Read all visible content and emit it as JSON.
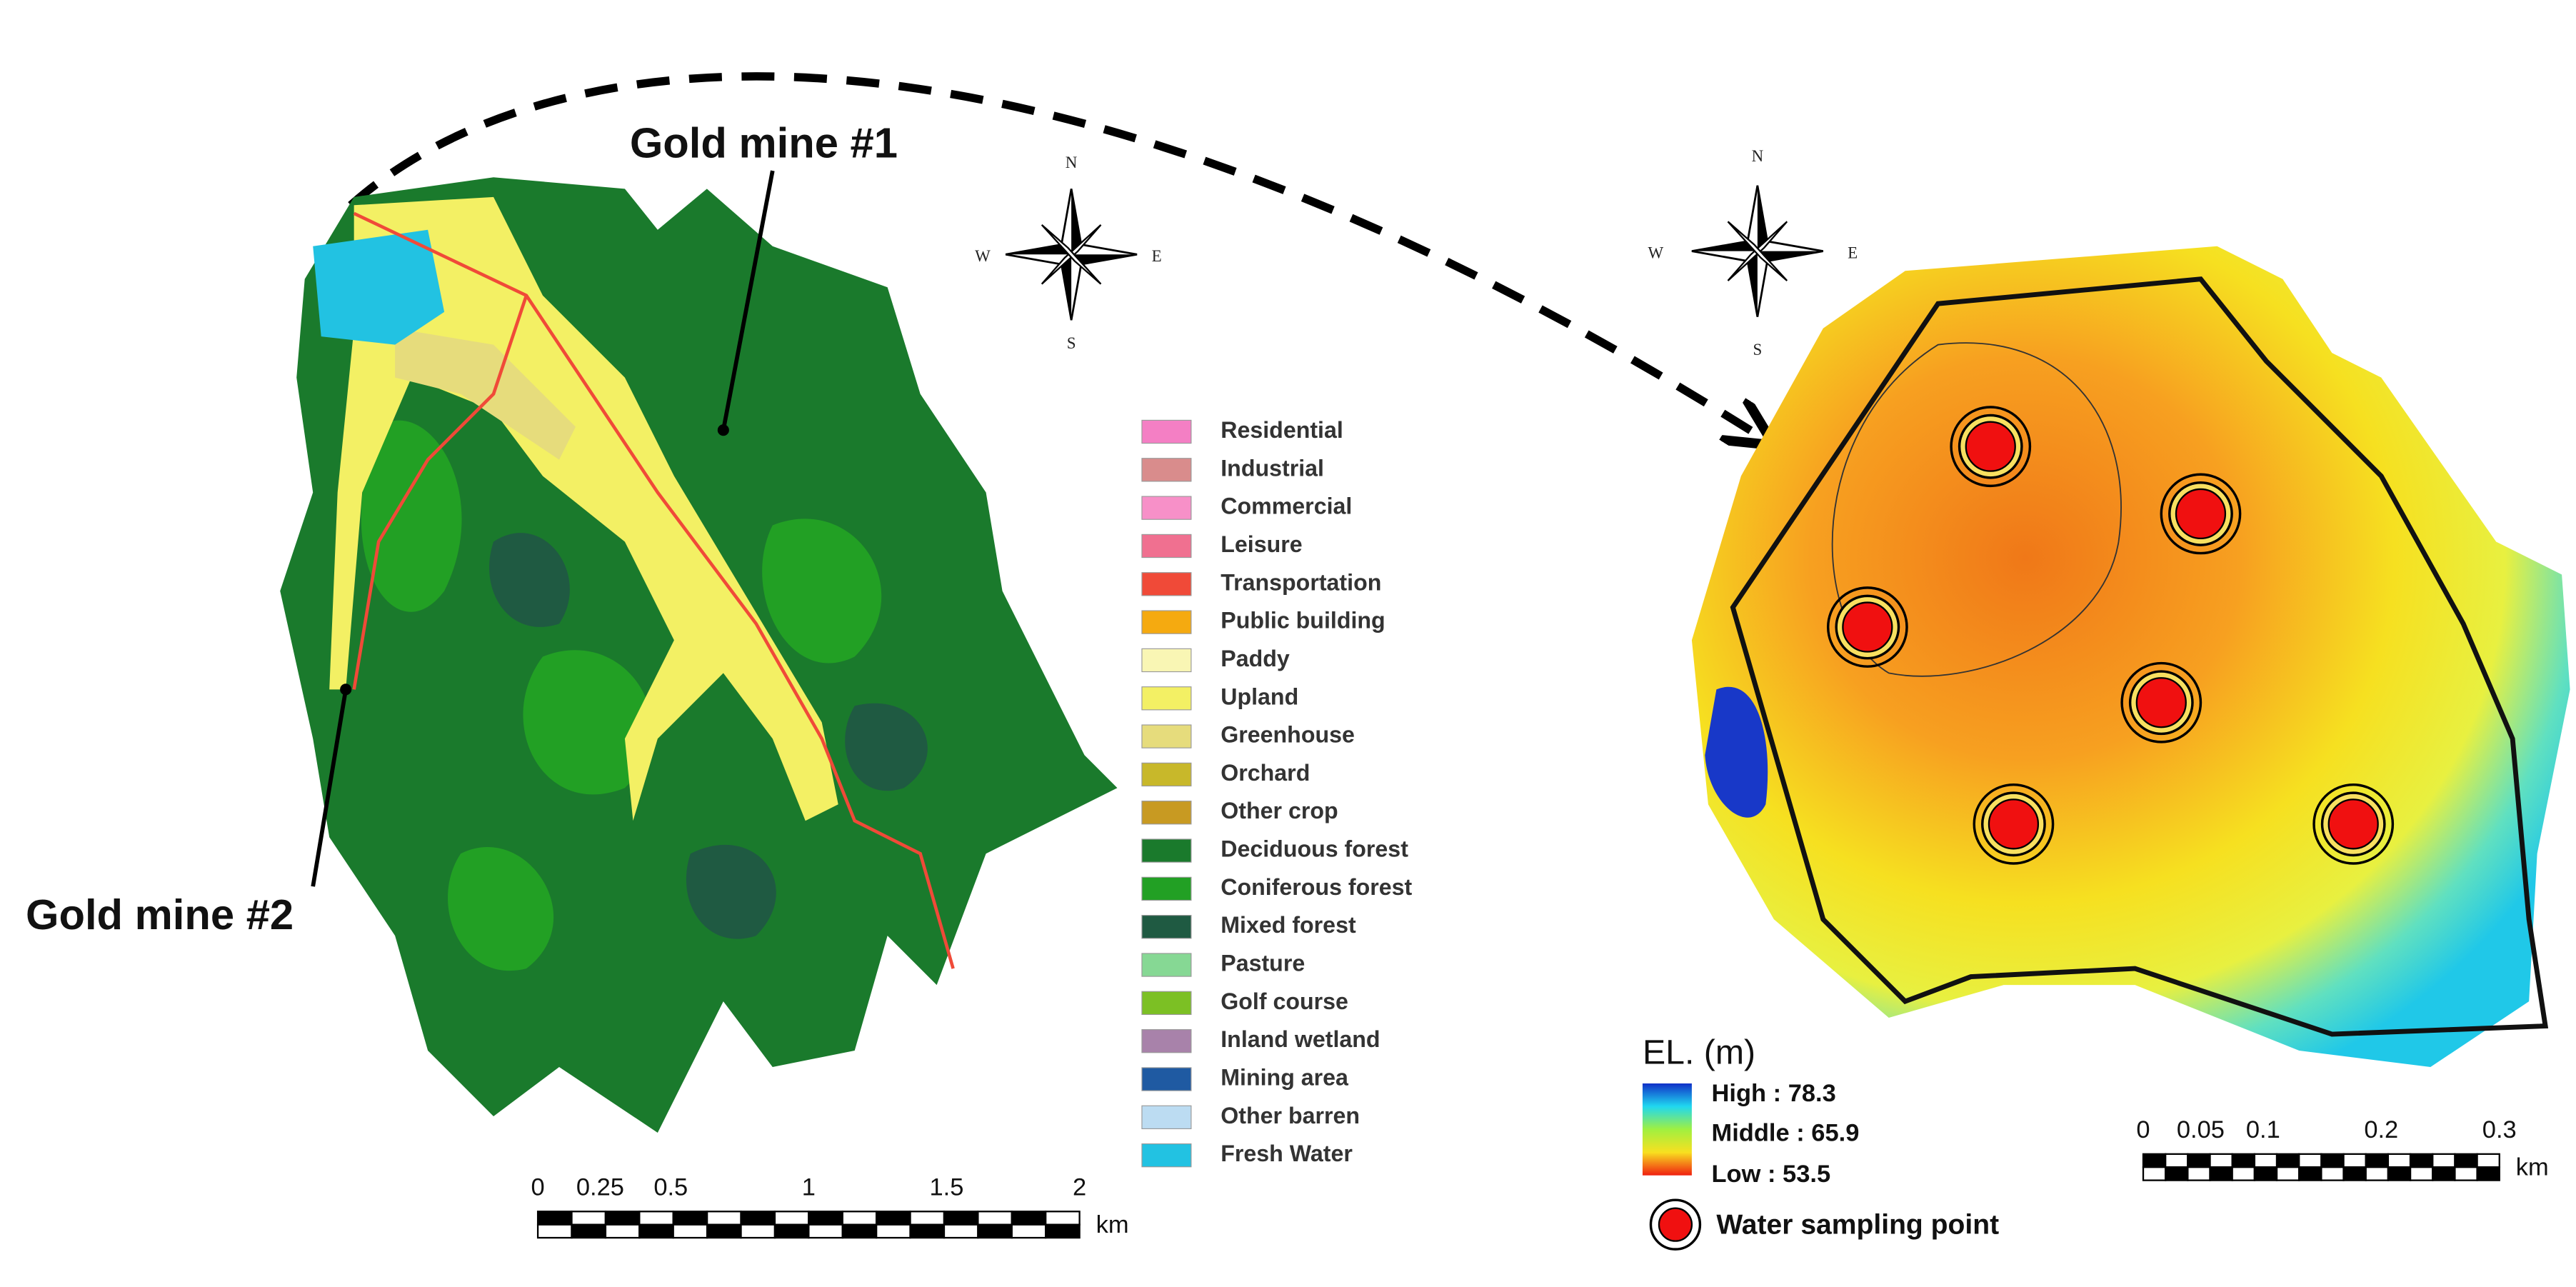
{
  "left_map": {
    "labels": {
      "mine1": "Gold mine #1",
      "mine2": "Gold mine #2"
    },
    "compass": {
      "n": "N",
      "e": "E",
      "s": "S",
      "w": "W"
    },
    "scale_bar": {
      "ticks": [
        "0",
        "0.25",
        "0.5",
        "1",
        "1.5",
        "2"
      ],
      "unit": "km"
    },
    "legend": [
      {
        "name": "Residential",
        "color": "#f47fc4"
      },
      {
        "name": "Industrial",
        "color": "#d98c8c"
      },
      {
        "name": "Commercial",
        "color": "#f790c8"
      },
      {
        "name": "Leisure",
        "color": "#f07090"
      },
      {
        "name": "Transportation",
        "color": "#f04a38"
      },
      {
        "name": "Public building",
        "color": "#f5aa10"
      },
      {
        "name": "Paddy",
        "color": "#f9f6b4"
      },
      {
        "name": "Upland",
        "color": "#f3f064"
      },
      {
        "name": "Greenhouse",
        "color": "#e6dc7c"
      },
      {
        "name": "Orchard",
        "color": "#c8b82a"
      },
      {
        "name": "Other crop",
        "color": "#c89a22"
      },
      {
        "name": "Deciduous forest",
        "color": "#1a7a2c"
      },
      {
        "name": "Coniferous forest",
        "color": "#22a024"
      },
      {
        "name": "Mixed forest",
        "color": "#1f5a42"
      },
      {
        "name": "Pasture",
        "color": "#86d894"
      },
      {
        "name": "Golf course",
        "color": "#7cc024"
      },
      {
        "name": "Inland wetland",
        "color": "#a882aa"
      },
      {
        "name": "Mining area",
        "color": "#1f5aa2"
      },
      {
        "name": "Other barren",
        "color": "#bcdcf2"
      },
      {
        "name": "Fresh Water",
        "color": "#22c2e2"
      }
    ]
  },
  "right_map": {
    "compass": {
      "n": "N",
      "e": "E",
      "s": "S",
      "w": "W"
    },
    "elevation_legend": {
      "title": "EL. (m)",
      "high": "High : 78.3",
      "middle": "Middle : 65.9",
      "low": "Low : 53.5"
    },
    "sampling_legend": "Water sampling point",
    "scale_bar": {
      "ticks": [
        "0",
        "0.05",
        "0.1",
        "0.2",
        "0.3"
      ],
      "unit": "km"
    }
  }
}
